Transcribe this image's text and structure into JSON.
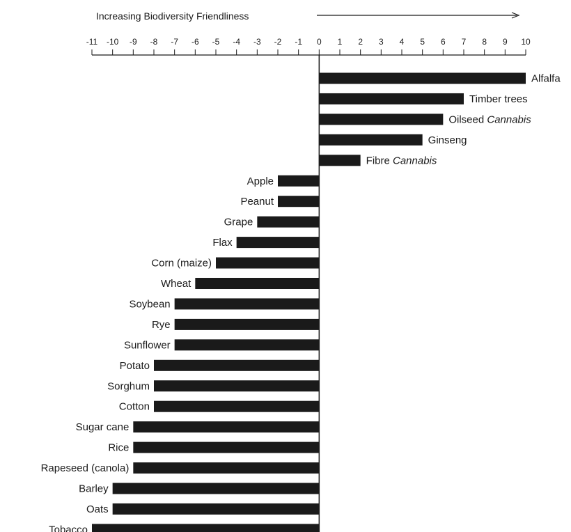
{
  "chart_data": {
    "type": "bar",
    "orientation": "horizontal",
    "title": "Increasing Biodiversity Friendliness",
    "title_arrow": true,
    "axis_position": "top",
    "xlim": [
      -11,
      10
    ],
    "ticks": [
      -11,
      -10,
      -9,
      -8,
      -7,
      -6,
      -5,
      -4,
      -3,
      -2,
      -1,
      0,
      1,
      2,
      3,
      4,
      5,
      6,
      7,
      8,
      9,
      10
    ],
    "bar_color": "#1a1a1a",
    "grid": false,
    "categories": [
      {
        "prefix": "Alfalfa",
        "italic": ""
      },
      {
        "prefix": "Timber trees",
        "italic": ""
      },
      {
        "prefix": "Oilseed ",
        "italic": "Cannabis"
      },
      {
        "prefix": "Ginseng",
        "italic": ""
      },
      {
        "prefix": "Fibre ",
        "italic": "Cannabis"
      },
      {
        "prefix": "Apple",
        "italic": ""
      },
      {
        "prefix": "Peanut",
        "italic": ""
      },
      {
        "prefix": "Grape",
        "italic": ""
      },
      {
        "prefix": "Flax",
        "italic": ""
      },
      {
        "prefix": "Corn (maize)",
        "italic": ""
      },
      {
        "prefix": "Wheat",
        "italic": ""
      },
      {
        "prefix": "Soybean",
        "italic": ""
      },
      {
        "prefix": "Rye",
        "italic": ""
      },
      {
        "prefix": "Sunflower",
        "italic": ""
      },
      {
        "prefix": "Potato",
        "italic": ""
      },
      {
        "prefix": "Sorghum",
        "italic": ""
      },
      {
        "prefix": "Cotton",
        "italic": ""
      },
      {
        "prefix": "Sugar cane",
        "italic": ""
      },
      {
        "prefix": "Rice",
        "italic": ""
      },
      {
        "prefix": "Rapeseed (canola)",
        "italic": ""
      },
      {
        "prefix": "Barley",
        "italic": ""
      },
      {
        "prefix": "Oats",
        "italic": ""
      },
      {
        "prefix": "Tobacco",
        "italic": ""
      }
    ],
    "values": [
      10,
      7,
      6,
      5,
      2,
      -2,
      -2,
      -3,
      -4,
      -5,
      -6,
      -7,
      -7,
      -7,
      -8,
      -8,
      -8,
      -9,
      -9,
      -9,
      -10,
      -10,
      -11
    ]
  }
}
